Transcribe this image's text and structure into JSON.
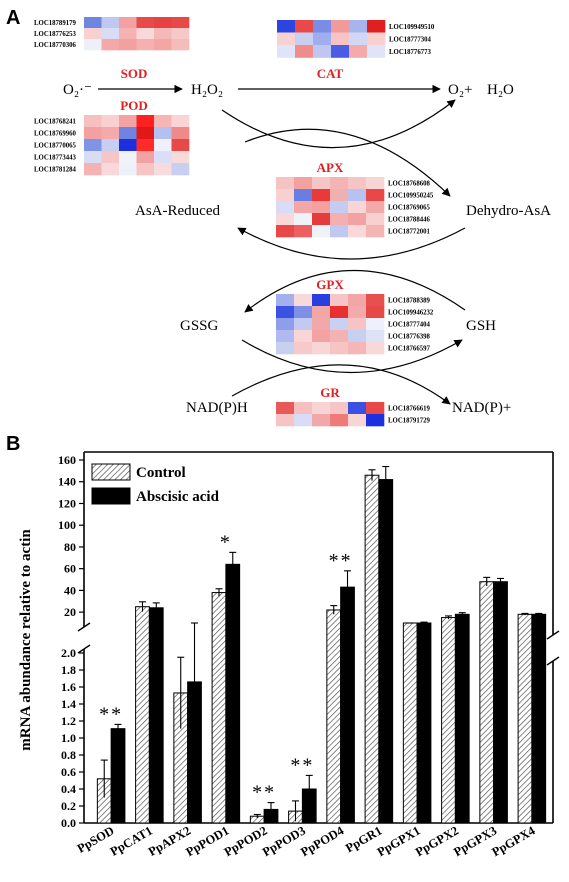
{
  "panel_a": {
    "label": "A",
    "species": {
      "o2_radical": "O₂·⁻",
      "h2o2": "H₂O₂",
      "o2_plus": "O₂+",
      "h2o": "H₂O",
      "asa_reduced": "AsA-Reduced",
      "dehydro_asa": "Dehydro-AsA",
      "gssg": "GSSG",
      "gsh": "GSH",
      "nadph": "NAD(P)H",
      "nadp_plus": "NAD(P)+"
    },
    "heatmaps": [
      {
        "name": "SOD",
        "genes": [
          "LOC18789179",
          "LOC18776253",
          "LOC18770306"
        ],
        "cells": [
          [
            "#6f86e0",
            "#c0c8f2",
            "#f3a0a0",
            "#e84a4a",
            "#e64242",
            "#e84848"
          ],
          [
            "#f8d0d0",
            "#d8dcf4",
            "#f6b2b2",
            "#f8d8d8",
            "#f5b8b8",
            "#f6c8c8"
          ],
          [
            "#ecf0fa",
            "#f4a8a8",
            "#f2a0a0",
            "#f5b0b0",
            "#f4a6a6",
            "#f6bcbc"
          ]
        ]
      },
      {
        "name": "CAT",
        "genes": [
          "LOC109949510",
          "LOC18777304",
          "LOC18776773"
        ],
        "cells": [
          [
            "#2c45e0",
            "#e84a4a",
            "#7a8ce6",
            "#f09a9a",
            "#a8b4ee",
            "#e02020"
          ],
          [
            "#f8d2d2",
            "#c8d0f2",
            "#a0aef0",
            "#f6c4c4",
            "#d2d8f4",
            "#f8d0d0"
          ],
          [
            "#e0e4f8",
            "#f08c8c",
            "#c0c6f2",
            "#4a5ee4",
            "#f4aaaa",
            "#e0e4f8"
          ]
        ]
      },
      {
        "name": "POD",
        "genes": [
          "LOC18768241",
          "LOC18769960",
          "LOC18770065",
          "LOC18773443",
          "LOC18781284"
        ],
        "cells": [
          [
            "#f6c0c0",
            "#f8d0d0",
            "#f2a4a4",
            "#ff2020",
            "#f6b6b6",
            "#f8d4d4"
          ],
          [
            "#f2a0a0",
            "#f4aaaa",
            "#6f84e0",
            "#e01818",
            "#b6c0f0",
            "#ee8a8a"
          ],
          [
            "#7f94e6",
            "#c8cef2",
            "#1c30e0",
            "#ff2a2a",
            "#f0f0fa",
            "#e84848"
          ],
          [
            "#d8dcf4",
            "#f6c6c6",
            "#f0f2fa",
            "#f2a2a2",
            "#dadef6",
            "#f8dada"
          ],
          [
            "#f4b2b2",
            "#f8d8d8",
            "#eef0fa",
            "#f6c4c4",
            "#f8dcdc",
            "#c8d0f2"
          ]
        ]
      },
      {
        "name": "APX",
        "genes": [
          "LOC18768608",
          "LOC109950245",
          "LOC18769065",
          "LOC18788446",
          "LOC18772001"
        ],
        "cells": [
          [
            "#f6c2c2",
            "#f2a0a0",
            "#f6c6c6",
            "#f4b4b4",
            "#f6c4c4",
            "#f8d4d4"
          ],
          [
            "#f8d0d0",
            "#6a7ee2",
            "#e83a3a",
            "#eeb0b0",
            "#b8c2f0",
            "#e84848"
          ],
          [
            "#d8dcf6",
            "#f2a6a6",
            "#f2a0a0",
            "#c4ccf2",
            "#f8d6d6",
            "#f4aaaa"
          ],
          [
            "#f8d8d8",
            "#f0f2fa",
            "#e43c3c",
            "#f4b0b0",
            "#f2a2a2",
            "#f8d0d0"
          ],
          [
            "#e84848",
            "#ec6060",
            "#f0f2fa",
            "#c0c8f2",
            "#f8d8d8",
            "#f4b4b4"
          ]
        ]
      },
      {
        "name": "GPX",
        "genes": [
          "LOC18788389",
          "LOC109946232",
          "LOC18777404",
          "LOC18776398",
          "LOC18766597"
        ],
        "cells": [
          [
            "#a4b0ee",
            "#f8d8d8",
            "#2a3ee0",
            "#f6c6c6",
            "#f2a6a6",
            "#e85050"
          ],
          [
            "#3c52e2",
            "#7e90e6",
            "#f2a6a6",
            "#e83030",
            "#f2aaaa",
            "#e84848"
          ],
          [
            "#8e9eea",
            "#c2caf2",
            "#f2a8a8",
            "#c8d0f4",
            "#f6c4c4",
            "#eef0fa"
          ],
          [
            "#b0baf0",
            "#f8d6d6",
            "#f2a2a2",
            "#f4b2b2",
            "#c8d0f2",
            "#dde2f6"
          ],
          [
            "#c8d0f2",
            "#f6caca",
            "#f8d6d6",
            "#f6c4c4",
            "#f4b6b6",
            "#f8d8d8"
          ]
        ]
      },
      {
        "name": "GR",
        "genes": [
          "LOC18766619",
          "LOC18791729"
        ],
        "cells": [
          [
            "#e85a5a",
            "#f6c0c0",
            "#f8d4d4",
            "#f6c6c6",
            "#3a50e2",
            "#e84848"
          ],
          [
            "#f6c4c4",
            "#d8dcf6",
            "#f2a8a8",
            "#ee7a7a",
            "#f8d4d4",
            "#1c30e0"
          ]
        ]
      }
    ]
  },
  "chart_data": {
    "panel_label": "B",
    "type": "bar",
    "ylabel": "mRNA abundance relative to actin",
    "categories": [
      "PpSOD",
      "PpCAT1",
      "PpAPX2",
      "PpPOD1",
      "PpPOD2",
      "PpPOD3",
      "PpPOD4",
      "PpGR1",
      "PpGPX1",
      "PpGPX2",
      "PpGPX3",
      "PpGPX4"
    ],
    "series": [
      {
        "name": "Control",
        "values": [
          0.52,
          25,
          1.53,
          38,
          0.08,
          0.14,
          22,
          146,
          9,
          15,
          48,
          18
        ],
        "errors": [
          0.22,
          4.5,
          0.42,
          3.5,
          0.02,
          0.12,
          4,
          5,
          0.8,
          1.5,
          4,
          0.8
        ],
        "fill": "hatched"
      },
      {
        "name": "Abscisic acid",
        "values": [
          1.11,
          24,
          1.66,
          64,
          0.16,
          0.4,
          43,
          142,
          10,
          18,
          48,
          18
        ],
        "errors": [
          0.05,
          4.5,
          0.35,
          11,
          0.08,
          0.16,
          15,
          12,
          0.8,
          1.5,
          3,
          0.8
        ],
        "fill": "#000000"
      }
    ],
    "significance": [
      "**",
      "",
      "",
      "*",
      "**",
      "**",
      "**",
      "",
      "",
      "",
      "",
      ""
    ],
    "y_axis_broken": true,
    "lower_segment": {
      "ylim": [
        0,
        2.0
      ],
      "ticks": [
        "0.0",
        "0.2",
        "0.4",
        "0.6",
        "0.8",
        "1.0",
        "1.2",
        "1.4",
        "1.6",
        "1.8",
        "2.0"
      ]
    },
    "upper_segment": {
      "ylim": [
        10,
        160
      ],
      "ticks": [
        "20",
        "40",
        "60",
        "80",
        "100",
        "120",
        "140",
        "160"
      ]
    },
    "legend_position": "top-left"
  }
}
